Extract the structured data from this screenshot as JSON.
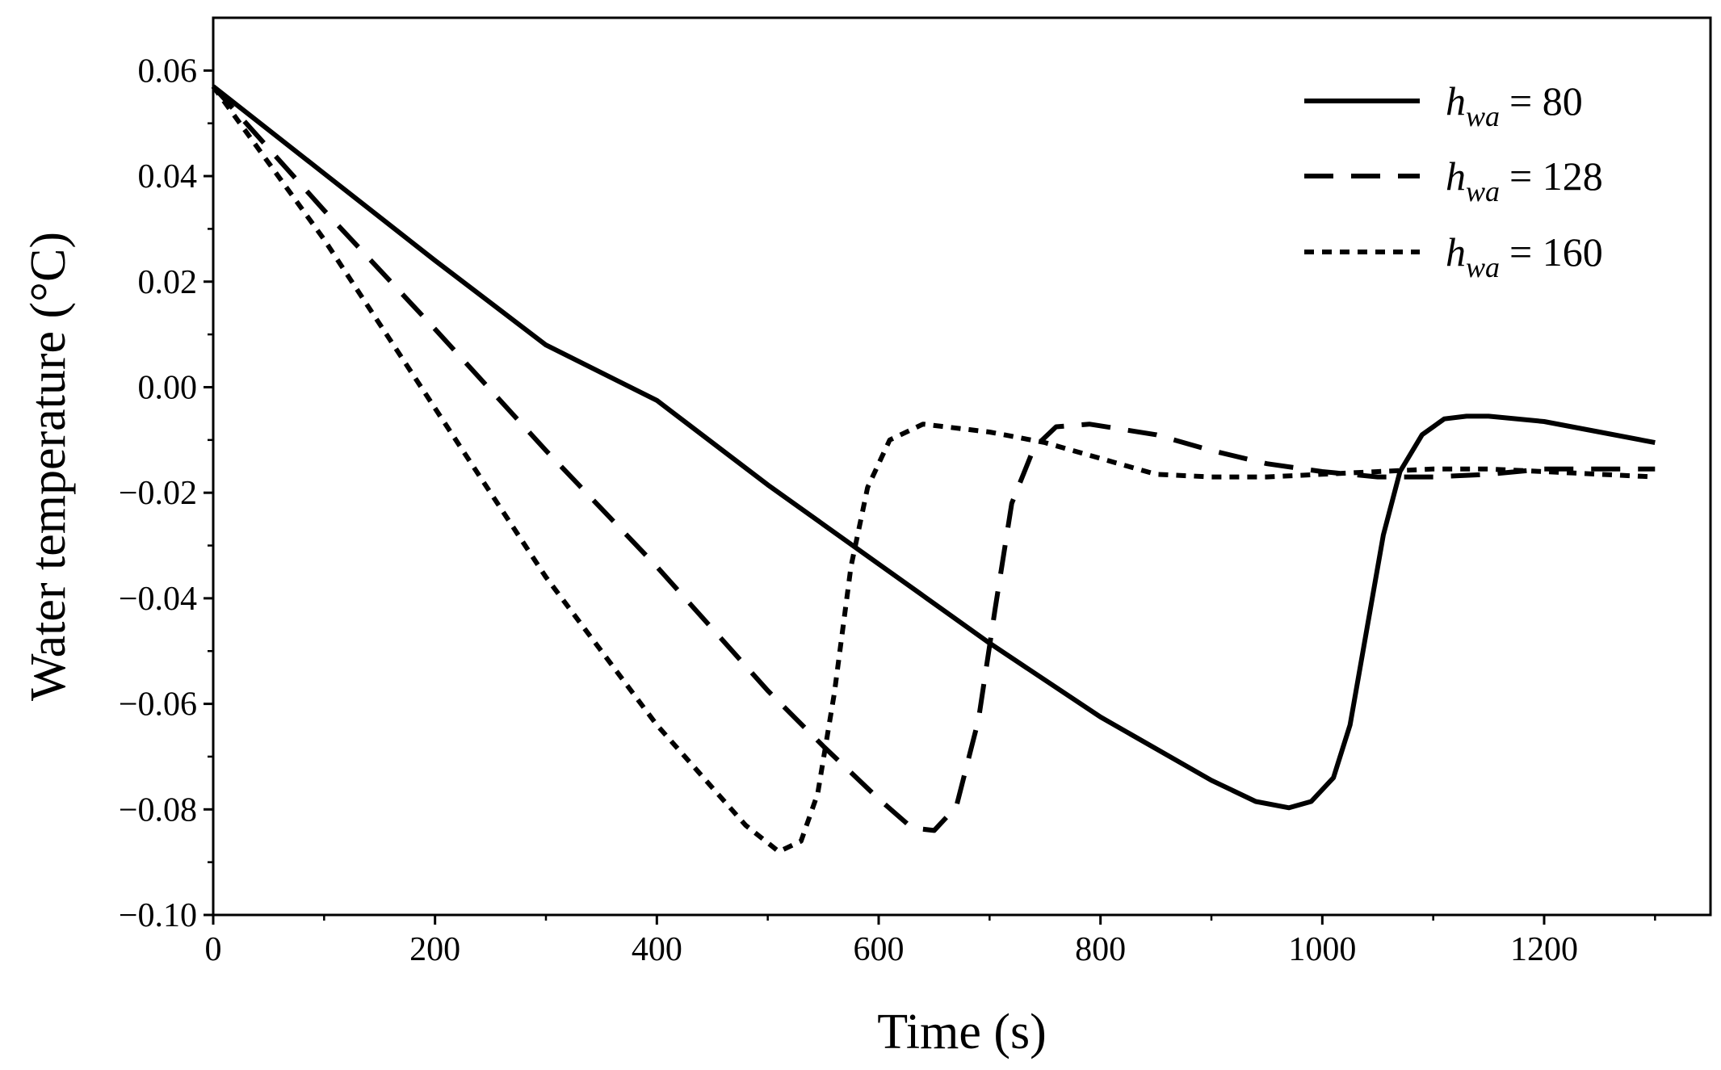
{
  "chart_data": {
    "type": "line",
    "title": "",
    "xlabel": "Time (s)",
    "ylabel": "Water temperature (°C)",
    "xlim": [
      0,
      1350
    ],
    "ylim": [
      -0.1,
      0.07
    ],
    "x_ticks": [
      0,
      200,
      400,
      600,
      800,
      1000,
      1200
    ],
    "x_tick_labels": [
      "0",
      "200",
      "400",
      "600",
      "800",
      "1000",
      "1200"
    ],
    "y_ticks": [
      0.06,
      0.04,
      0.02,
      0.0,
      -0.02,
      -0.04,
      -0.06,
      -0.08,
      -0.1
    ],
    "y_tick_labels": [
      "0.06",
      "0.04",
      "0.02",
      "0.00",
      "−0.02",
      "−0.04",
      "−0.06",
      "−0.08",
      "−0.10"
    ],
    "grid": false,
    "legend_position": "top-right",
    "series": [
      {
        "name": "h_wa = 80",
        "legend_var": "h",
        "legend_sub": "wa",
        "legend_value": "= 80",
        "style": "solid",
        "x": [
          0,
          100,
          200,
          300,
          400,
          500,
          600,
          700,
          800,
          900,
          940,
          970,
          990,
          1010,
          1025,
          1040,
          1055,
          1070,
          1090,
          1110,
          1130,
          1150,
          1200,
          1250,
          1300
        ],
        "y": [
          0.057,
          0.0405,
          0.024,
          0.008,
          -0.0025,
          -0.0185,
          -0.0335,
          -0.0485,
          -0.0625,
          -0.0745,
          -0.0785,
          -0.0797,
          -0.0785,
          -0.074,
          -0.064,
          -0.046,
          -0.028,
          -0.016,
          -0.009,
          -0.006,
          -0.0055,
          -0.0055,
          -0.0065,
          -0.0085,
          -0.0105
        ]
      },
      {
        "name": "h_wa = 128",
        "legend_var": "h",
        "legend_sub": "wa",
        "legend_value": "= 128",
        "style": "dashed",
        "x": [
          0,
          100,
          200,
          300,
          400,
          500,
          550,
          600,
          630,
          650,
          670,
          690,
          705,
          720,
          740,
          760,
          790,
          850,
          900,
          950,
          1000,
          1050,
          1100,
          1150,
          1200,
          1250,
          1300
        ],
        "y": [
          0.057,
          0.0335,
          0.011,
          -0.012,
          -0.034,
          -0.0575,
          -0.068,
          -0.078,
          -0.0835,
          -0.084,
          -0.0795,
          -0.063,
          -0.042,
          -0.022,
          -0.0115,
          -0.0075,
          -0.007,
          -0.009,
          -0.012,
          -0.0145,
          -0.016,
          -0.017,
          -0.017,
          -0.0165,
          -0.0155,
          -0.0155,
          -0.0155
        ]
      },
      {
        "name": "h_wa = 160",
        "legend_var": "h",
        "legend_sub": "wa",
        "legend_value": "= 160",
        "style": "dotted",
        "x": [
          0,
          100,
          200,
          300,
          400,
          480,
          510,
          530,
          545,
          560,
          575,
          590,
          610,
          640,
          700,
          750,
          800,
          850,
          900,
          950,
          1000,
          1050,
          1100,
          1150,
          1200,
          1250,
          1300
        ],
        "y": [
          0.057,
          0.028,
          -0.004,
          -0.036,
          -0.064,
          -0.083,
          -0.088,
          -0.086,
          -0.077,
          -0.058,
          -0.034,
          -0.019,
          -0.01,
          -0.007,
          -0.0085,
          -0.0105,
          -0.0135,
          -0.0165,
          -0.017,
          -0.017,
          -0.0165,
          -0.016,
          -0.0155,
          -0.0155,
          -0.016,
          -0.0165,
          -0.017
        ]
      }
    ]
  }
}
